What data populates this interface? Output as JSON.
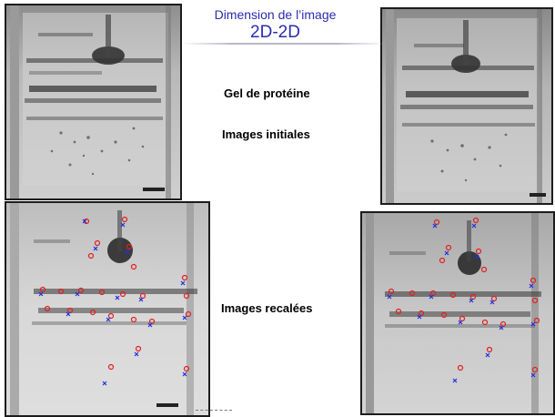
{
  "title": {
    "line1": "Dimension de l’image",
    "line2": "2D-2D"
  },
  "labels": {
    "gel": "Gel de protéine",
    "initial": "Images initiales",
    "registered": "Images recalées"
  },
  "colors": {
    "title_text": "#2b2bb0",
    "marker_red": "#e02020",
    "marker_blue": "#2030e0"
  }
}
